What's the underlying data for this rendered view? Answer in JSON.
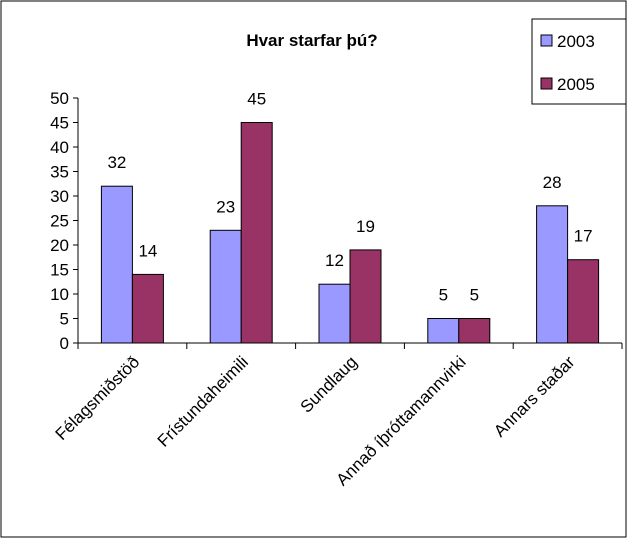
{
  "chart_data": {
    "type": "bar",
    "title": "Hvar starfar þú?",
    "xlabel": "",
    "ylabel": "",
    "ylim": [
      0,
      50
    ],
    "yticks": [
      0,
      5,
      10,
      15,
      20,
      25,
      30,
      35,
      40,
      45,
      50
    ],
    "categories": [
      "Félagsmiðstöð",
      "Frístundaheimili",
      "Sundlaug",
      "Annað íþróttamannvirki",
      "Annars staðar"
    ],
    "series": [
      {
        "name": "2003",
        "values": [
          32,
          23,
          12,
          5,
          28
        ],
        "color": "#9999ff"
      },
      {
        "name": "2005",
        "values": [
          14,
          45,
          19,
          5,
          17
        ],
        "color": "#993366"
      }
    ],
    "legend_position": "top-right",
    "grid": false,
    "data_labels": true
  }
}
